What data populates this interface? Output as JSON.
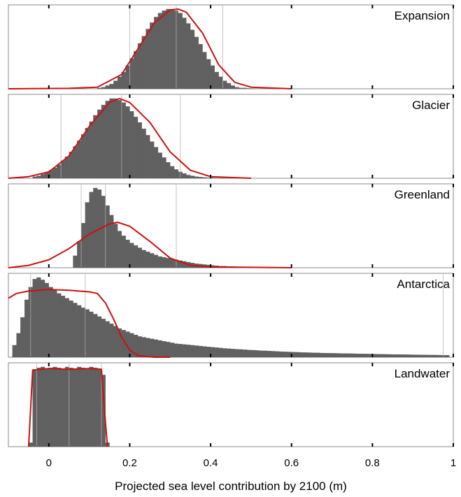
{
  "chart_data": {
    "type": "bar",
    "xlabel": "Projected sea level contribution by 2100 (m)",
    "xlim": [
      -0.1,
      1.0
    ],
    "xticks": [
      "0",
      "0.2",
      "0.4",
      "0.6",
      "0.8",
      "1"
    ],
    "xtick_values": [
      0,
      0.2,
      0.4,
      0.6,
      0.8,
      1.0
    ],
    "colors": {
      "bars": "#606060",
      "fit": "#cc1111",
      "frame": "#888888",
      "quantile_lines": "#d8d8d8"
    },
    "panels": [
      {
        "title": "Expansion",
        "bin_width": 0.01,
        "bin_centers": [
          0.125,
          0.135,
          0.145,
          0.155,
          0.165,
          0.175,
          0.185,
          0.195,
          0.205,
          0.215,
          0.225,
          0.235,
          0.245,
          0.255,
          0.265,
          0.275,
          0.285,
          0.295,
          0.305,
          0.315,
          0.325,
          0.335,
          0.345,
          0.355,
          0.365,
          0.375,
          0.385,
          0.395,
          0.405,
          0.415,
          0.425,
          0.435,
          0.445,
          0.455,
          0.465,
          0.475,
          0.485,
          0.495,
          0.505
        ],
        "values": [
          0.01,
          0.02,
          0.04,
          0.06,
          0.1,
          0.15,
          0.21,
          0.29,
          0.38,
          0.47,
          0.57,
          0.66,
          0.75,
          0.83,
          0.9,
          0.95,
          0.98,
          1.0,
          1.0,
          0.98,
          0.95,
          0.89,
          0.82,
          0.74,
          0.65,
          0.56,
          0.46,
          0.37,
          0.29,
          0.21,
          0.15,
          0.1,
          0.07,
          0.04,
          0.02,
          0.01,
          0.01,
          0.005,
          0.003
        ],
        "fit": [
          [
            -0.1,
            0
          ],
          [
            0.05,
            0.005
          ],
          [
            0.12,
            0.02
          ],
          [
            0.18,
            0.18
          ],
          [
            0.22,
            0.5
          ],
          [
            0.26,
            0.82
          ],
          [
            0.3,
            0.99
          ],
          [
            0.32,
            1.0
          ],
          [
            0.34,
            0.96
          ],
          [
            0.38,
            0.7
          ],
          [
            0.42,
            0.3
          ],
          [
            0.46,
            0.08
          ],
          [
            0.5,
            0.02
          ],
          [
            0.6,
            0
          ]
        ],
        "quantile_lines": [
          0.2,
          0.315,
          0.43
        ]
      },
      {
        "title": "Glacier",
        "bin_width": 0.01,
        "bin_centers": [
          -0.035,
          -0.025,
          -0.015,
          -0.005,
          0.005,
          0.015,
          0.025,
          0.035,
          0.045,
          0.055,
          0.065,
          0.075,
          0.085,
          0.095,
          0.105,
          0.115,
          0.125,
          0.135,
          0.145,
          0.155,
          0.165,
          0.175,
          0.185,
          0.195,
          0.205,
          0.215,
          0.225,
          0.235,
          0.245,
          0.255,
          0.265,
          0.275,
          0.285,
          0.295,
          0.305,
          0.315,
          0.325,
          0.335,
          0.345,
          0.355,
          0.365,
          0.375,
          0.385,
          0.395,
          0.405,
          0.415,
          0.425
        ],
        "values": [
          0.02,
          0.03,
          0.05,
          0.07,
          0.1,
          0.13,
          0.17,
          0.22,
          0.27,
          0.33,
          0.4,
          0.47,
          0.55,
          0.63,
          0.71,
          0.79,
          0.86,
          0.92,
          0.97,
          1.0,
          1.0,
          0.98,
          0.95,
          0.9,
          0.84,
          0.77,
          0.7,
          0.62,
          0.54,
          0.46,
          0.39,
          0.32,
          0.26,
          0.2,
          0.15,
          0.11,
          0.08,
          0.06,
          0.04,
          0.03,
          0.02,
          0.015,
          0.01,
          0.007,
          0.005,
          0.003,
          0.002
        ],
        "fit": [
          [
            -0.1,
            0
          ],
          [
            -0.05,
            0.02
          ],
          [
            0.0,
            0.08
          ],
          [
            0.05,
            0.28
          ],
          [
            0.1,
            0.65
          ],
          [
            0.15,
            0.95
          ],
          [
            0.175,
            1.0
          ],
          [
            0.2,
            0.95
          ],
          [
            0.25,
            0.7
          ],
          [
            0.3,
            0.33
          ],
          [
            0.35,
            0.1
          ],
          [
            0.4,
            0.02
          ],
          [
            0.5,
            0
          ]
        ],
        "quantile_lines": [
          0.03,
          0.18,
          0.325
        ]
      },
      {
        "title": "Greenland",
        "bin_width": 0.01,
        "bin_centers": [
          0.065,
          0.075,
          0.085,
          0.095,
          0.105,
          0.115,
          0.125,
          0.135,
          0.145,
          0.155,
          0.165,
          0.175,
          0.185,
          0.195,
          0.205,
          0.215,
          0.225,
          0.235,
          0.245,
          0.255,
          0.265,
          0.275,
          0.285,
          0.295,
          0.305,
          0.315,
          0.325,
          0.335,
          0.345,
          0.355,
          0.365,
          0.375,
          0.385,
          0.395,
          0.405,
          0.415,
          0.425,
          0.435,
          0.445,
          0.455,
          0.465,
          0.475,
          0.485,
          0.495,
          0.505,
          0.515,
          0.525,
          0.535,
          0.545,
          0.555,
          0.565,
          0.575,
          0.585,
          0.595
        ],
        "values": [
          0.15,
          0.33,
          0.56,
          0.82,
          0.95,
          1.0,
          0.98,
          0.9,
          0.78,
          0.66,
          0.55,
          0.46,
          0.4,
          0.35,
          0.31,
          0.28,
          0.25,
          0.22,
          0.2,
          0.18,
          0.16,
          0.14,
          0.13,
          0.12,
          0.11,
          0.1,
          0.09,
          0.08,
          0.07,
          0.06,
          0.05,
          0.045,
          0.04,
          0.035,
          0.03,
          0.025,
          0.02,
          0.02,
          0.015,
          0.015,
          0.01,
          0.01,
          0.01,
          0.008,
          0.007,
          0.006,
          0.005,
          0.005,
          0.004,
          0.004,
          0.003,
          0.003,
          0.002,
          0.002
        ],
        "fit": [
          [
            -0.1,
            0
          ],
          [
            -0.05,
            0.03
          ],
          [
            0.0,
            0.1
          ],
          [
            0.05,
            0.24
          ],
          [
            0.1,
            0.42
          ],
          [
            0.15,
            0.55
          ],
          [
            0.17,
            0.57
          ],
          [
            0.2,
            0.52
          ],
          [
            0.25,
            0.33
          ],
          [
            0.3,
            0.12
          ],
          [
            0.35,
            0.03
          ],
          [
            0.4,
            0.01
          ],
          [
            0.6,
            0
          ]
        ],
        "quantile_lines": [
          0.08,
          0.14,
          0.315
        ]
      },
      {
        "title": "Antarctica",
        "bin_width": 0.01,
        "bin_centers": [
          -0.085,
          -0.075,
          -0.065,
          -0.055,
          -0.045,
          -0.035,
          -0.025,
          -0.015,
          -0.005,
          0.005,
          0.015,
          0.025,
          0.035,
          0.045,
          0.055,
          0.065,
          0.075,
          0.085,
          0.095,
          0.105,
          0.115,
          0.125,
          0.135,
          0.145,
          0.155,
          0.165,
          0.175,
          0.185,
          0.195,
          0.205,
          0.215,
          0.225,
          0.235,
          0.245,
          0.255,
          0.265,
          0.275,
          0.285,
          0.295,
          0.305,
          0.315,
          0.325,
          0.335,
          0.345,
          0.355,
          0.365,
          0.375,
          0.385,
          0.395,
          0.405,
          0.415,
          0.425,
          0.435,
          0.445,
          0.455,
          0.465,
          0.475,
          0.485,
          0.495,
          0.505,
          0.515,
          0.525,
          0.535,
          0.545,
          0.555,
          0.565,
          0.575,
          0.585,
          0.595,
          0.605,
          0.615,
          0.625,
          0.635,
          0.645,
          0.655,
          0.665,
          0.675,
          0.685,
          0.695,
          0.705,
          0.715,
          0.725,
          0.735,
          0.745,
          0.755,
          0.765,
          0.775,
          0.785,
          0.795,
          0.805,
          0.815,
          0.825,
          0.835,
          0.845,
          0.855,
          0.865,
          0.875,
          0.885,
          0.895,
          0.905,
          0.915,
          0.925,
          0.935,
          0.945,
          0.955,
          0.965,
          0.975,
          0.985,
          0.995
        ],
        "values": [
          0.15,
          0.3,
          0.5,
          0.72,
          0.88,
          0.98,
          1.0,
          0.97,
          0.93,
          0.88,
          0.84,
          0.8,
          0.77,
          0.74,
          0.71,
          0.68,
          0.65,
          0.62,
          0.6,
          0.57,
          0.54,
          0.51,
          0.48,
          0.45,
          0.42,
          0.39,
          0.36,
          0.34,
          0.32,
          0.3,
          0.28,
          0.26,
          0.25,
          0.24,
          0.23,
          0.22,
          0.21,
          0.2,
          0.19,
          0.18,
          0.17,
          0.165,
          0.16,
          0.155,
          0.15,
          0.145,
          0.14,
          0.135,
          0.13,
          0.125,
          0.12,
          0.115,
          0.11,
          0.107,
          0.104,
          0.1,
          0.097,
          0.094,
          0.09,
          0.088,
          0.085,
          0.082,
          0.08,
          0.078,
          0.075,
          0.073,
          0.07,
          0.068,
          0.066,
          0.064,
          0.062,
          0.06,
          0.058,
          0.057,
          0.055,
          0.054,
          0.052,
          0.051,
          0.05,
          0.049,
          0.048,
          0.047,
          0.046,
          0.045,
          0.044,
          0.043,
          0.042,
          0.041,
          0.04,
          0.039,
          0.038,
          0.037,
          0.036,
          0.035,
          0.034,
          0.034,
          0.033,
          0.032,
          0.031,
          0.03,
          0.03,
          0.029,
          0.028,
          0.027,
          0.027,
          0.026,
          0.025,
          0.025
        ],
        "fit": [
          [
            -0.1,
            0.74
          ],
          [
            -0.08,
            0.8
          ],
          [
            -0.05,
            0.83
          ],
          [
            0.0,
            0.85
          ],
          [
            0.05,
            0.84
          ],
          [
            0.1,
            0.82
          ],
          [
            0.12,
            0.8
          ],
          [
            0.14,
            0.68
          ],
          [
            0.16,
            0.48
          ],
          [
            0.18,
            0.25
          ],
          [
            0.2,
            0.09
          ],
          [
            0.22,
            0.02
          ],
          [
            0.26,
            0
          ],
          [
            0.3,
            0
          ]
        ],
        "quantile_lines": [
          -0.045,
          0.09,
          0.975
        ]
      },
      {
        "title": "Landwater",
        "bin_width": 0.01,
        "bin_centers": [
          -0.045,
          -0.035,
          -0.025,
          -0.015,
          -0.005,
          0.005,
          0.015,
          0.025,
          0.035,
          0.045,
          0.055,
          0.065,
          0.075,
          0.085,
          0.095,
          0.105,
          0.115,
          0.125,
          0.135,
          0.145
        ],
        "values": [
          0.05,
          0.97,
          0.99,
          1.0,
          0.98,
          0.99,
          1.0,
          0.99,
          0.98,
          1.0,
          0.99,
          0.98,
          1.0,
          0.99,
          0.98,
          1.0,
          0.99,
          0.98,
          0.9,
          0.05
        ],
        "fit": [
          [
            -0.05,
            0
          ],
          [
            -0.04,
            0.96
          ],
          [
            0.0,
            0.98
          ],
          [
            0.05,
            0.97
          ],
          [
            0.1,
            0.98
          ],
          [
            0.13,
            0.97
          ],
          [
            0.14,
            0.3
          ],
          [
            0.145,
            0
          ]
        ],
        "quantile_lines": [
          -0.03,
          0.05,
          0.13
        ]
      }
    ]
  }
}
